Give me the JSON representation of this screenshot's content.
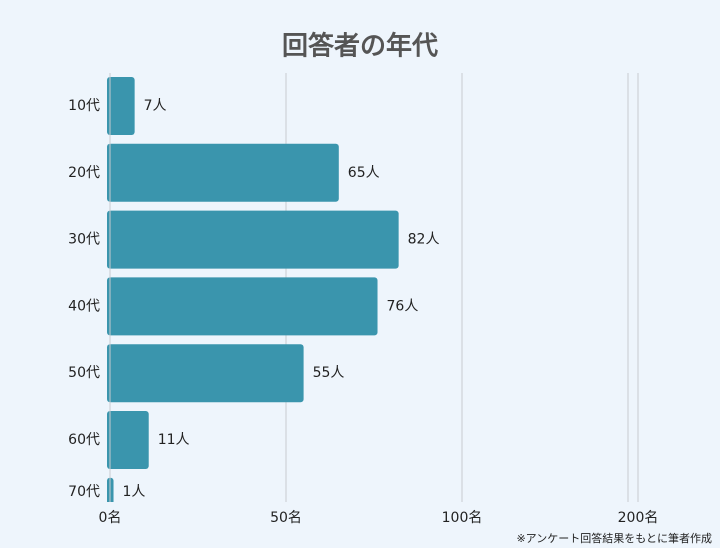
{
  "chart_data": {
    "type": "hbar",
    "title": "回答者の年代",
    "categories": [
      "10代",
      "20代",
      "30代",
      "40代",
      "50代",
      "60代",
      "70代"
    ],
    "values": [
      7,
      65,
      82,
      76,
      55,
      11,
      1
    ],
    "value_labels": [
      "7人",
      "65人",
      "82人",
      "76人",
      "55人",
      "11人",
      "1人"
    ],
    "color": "#3a95ad",
    "xlim": [
      0,
      200
    ],
    "xticks": [
      {
        "value": 0,
        "label": "0名"
      },
      {
        "value": 50,
        "label": "50名"
      },
      {
        "value": 100,
        "label": "100名"
      },
      {
        "value": 200,
        "label": "200名"
      }
    ],
    "grid": true,
    "note": "※アンケート回答結果をもとに筆者作成"
  }
}
